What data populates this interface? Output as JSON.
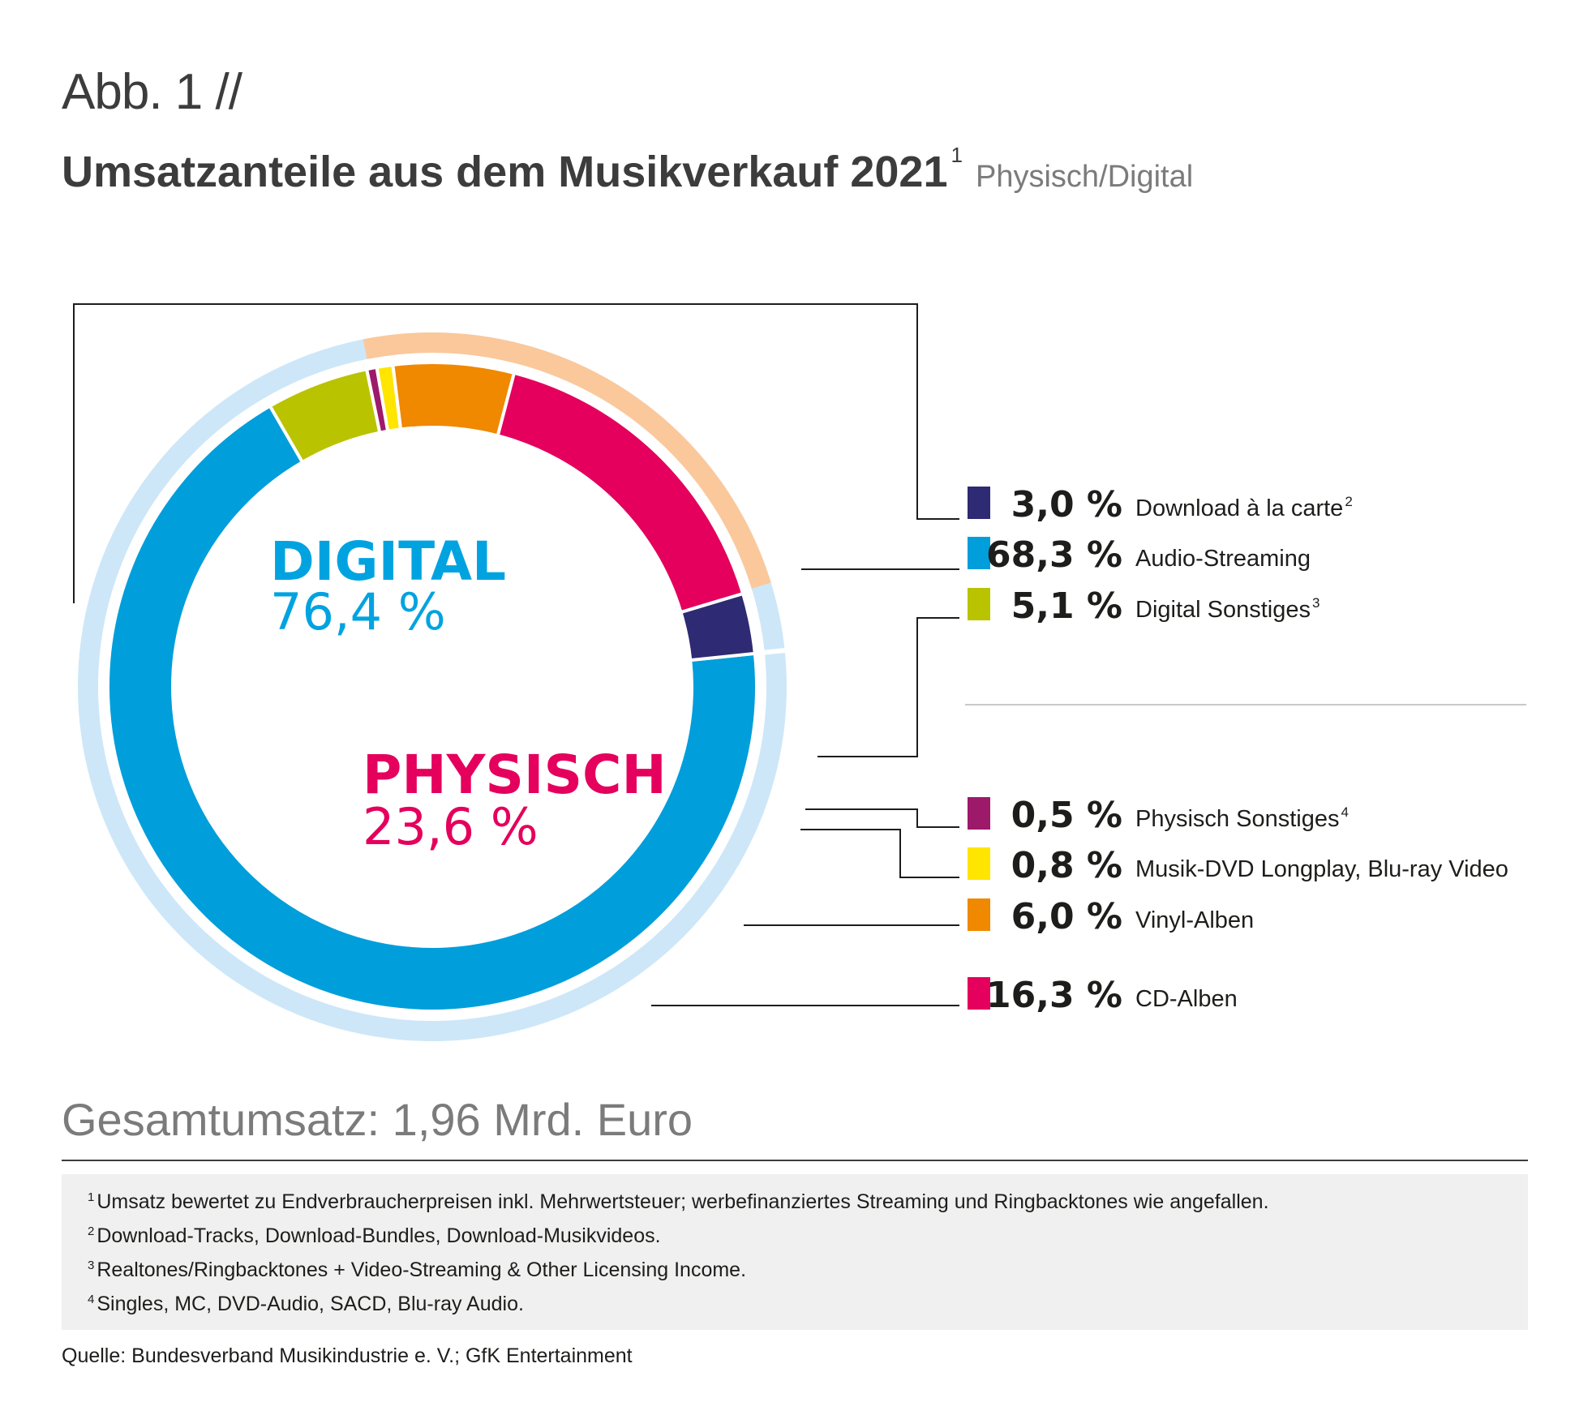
{
  "header": {
    "abb": "Abb. 1 //",
    "title": "Umsatzanteile aus dem Musikverkauf 2021",
    "title_footnote": "1",
    "subtitle": "Physisch/Digital"
  },
  "chart_data": {
    "type": "pie",
    "variant": "donut",
    "unit": "%",
    "groups": [
      {
        "name": "DIGITAL",
        "value": 76.4,
        "value_label": "76,4 %",
        "color": "#00a3e0",
        "ring_color": "#cde7f8"
      },
      {
        "name": "PHYSISCH",
        "value": 23.6,
        "value_label": "23,6 %",
        "color": "#e4005c",
        "ring_color": "#fbc89b"
      }
    ],
    "segments": [
      {
        "name": "Audio-Streaming",
        "group": "DIGITAL",
        "value": 68.3,
        "value_label": "68,3 %",
        "footnote": "",
        "color": "#009edb"
      },
      {
        "name": "Digital Sonstiges",
        "group": "DIGITAL",
        "value": 5.1,
        "value_label": "5,1 %",
        "footnote": "3",
        "color": "#b9c300"
      },
      {
        "name": "Physisch Sonstiges",
        "group": "PHYSISCH",
        "value": 0.5,
        "value_label": "0,5 %",
        "footnote": "4",
        "color": "#9d1a6b"
      },
      {
        "name": "Musik-DVD Longplay, Blu-ray Video",
        "group": "PHYSISCH",
        "value": 0.8,
        "value_label": "0,8 %",
        "footnote": "",
        "color": "#ffe500"
      },
      {
        "name": "Vinyl-Alben",
        "group": "PHYSISCH",
        "value": 6.0,
        "value_label": "6,0 %",
        "footnote": "",
        "color": "#f08800"
      },
      {
        "name": "CD-Alben",
        "group": "PHYSISCH",
        "value": 16.3,
        "value_label": "16,3 %",
        "footnote": "",
        "color": "#e4005c"
      },
      {
        "name": "Download à la carte",
        "group": "DIGITAL",
        "value": 3.0,
        "value_label": "3,0 %",
        "footnote": "2",
        "color": "#2e2a73"
      }
    ],
    "legend_order": [
      "Download à la carte",
      "Audio-Streaming",
      "Digital Sonstiges",
      "Physisch Sonstiges",
      "Musik-DVD Longplay, Blu-ray Video",
      "Vinyl-Alben",
      "CD-Alben"
    ],
    "legend_placement": "right"
  },
  "total": "Gesamtumsatz: 1,96 Mrd. Euro",
  "footnotes": [
    {
      "num": "1",
      "text": "Umsatz bewertet zu Endverbraucherpreisen inkl. Mehrwertsteuer; werbefinanziertes Streaming und Ringbacktones wie angefallen."
    },
    {
      "num": "2",
      "text": "Download-Tracks, Download-Bundles, Download-Musikvideos."
    },
    {
      "num": "3",
      "text": "Realtones/Ringbacktones + Video-Streaming & Other Licensing Income."
    },
    {
      "num": "4",
      "text": "Singles, MC, DVD-Audio, SACD, Blu-ray Audio."
    }
  ],
  "source": "Quelle: Bundesverband Musikindustrie e. V.; GfK Entertainment"
}
